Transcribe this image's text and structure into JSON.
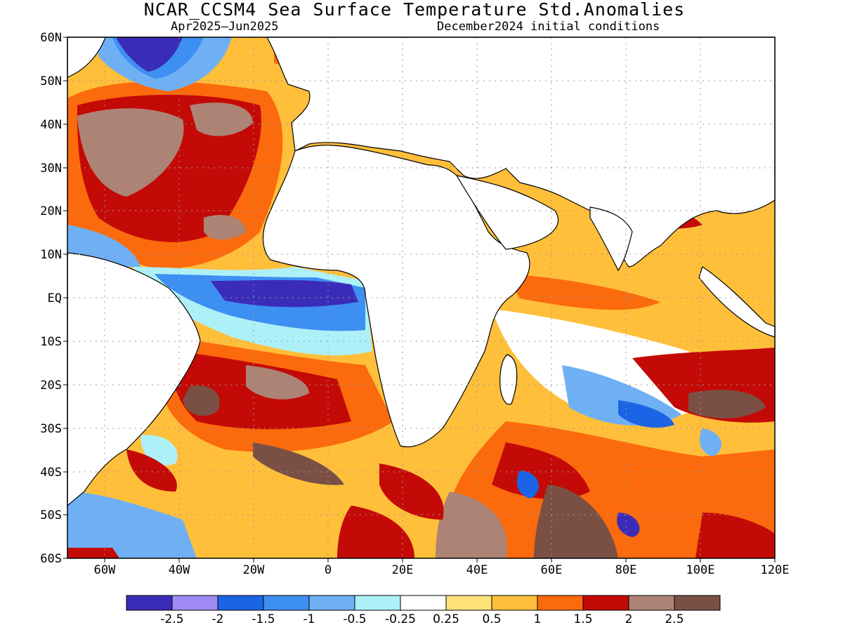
{
  "title": "NCAR_CCSM4 Sea Surface Temperature Std.Anomalies",
  "subtitle_left": "Apr2025–Jun2025",
  "subtitle_right": "December2024 initial conditions",
  "lat_labels": [
    "60N",
    "50N",
    "40N",
    "30N",
    "20N",
    "10N",
    "EQ",
    "10S",
    "20S",
    "30S",
    "40S",
    "50S",
    "60S"
  ],
  "lon_labels": [
    "60W",
    "40W",
    "20W",
    "0",
    "20E",
    "40E",
    "60E",
    "80E",
    "100E",
    "120E"
  ],
  "map": {
    "lon_range": [
      -70,
      120
    ],
    "lat_range": [
      -60,
      60
    ],
    "grid": "dotted"
  },
  "colorbar": {
    "colors": [
      "#3a2cb8",
      "#9f8af4",
      "#1c64e6",
      "#3d8ff2",
      "#6fb0f5",
      "#aef0f8",
      "#ffffff",
      "#ffe27a",
      "#ffbf3a",
      "#fb6a0c",
      "#c40a06",
      "#ad8376",
      "#7a5045"
    ],
    "labels": [
      "-2.5",
      "-2",
      "-1.5",
      "-1",
      "-0.5",
      "-0.25",
      "0.25",
      "0.5",
      "1",
      "1.5",
      "2",
      "2.5"
    ]
  }
}
